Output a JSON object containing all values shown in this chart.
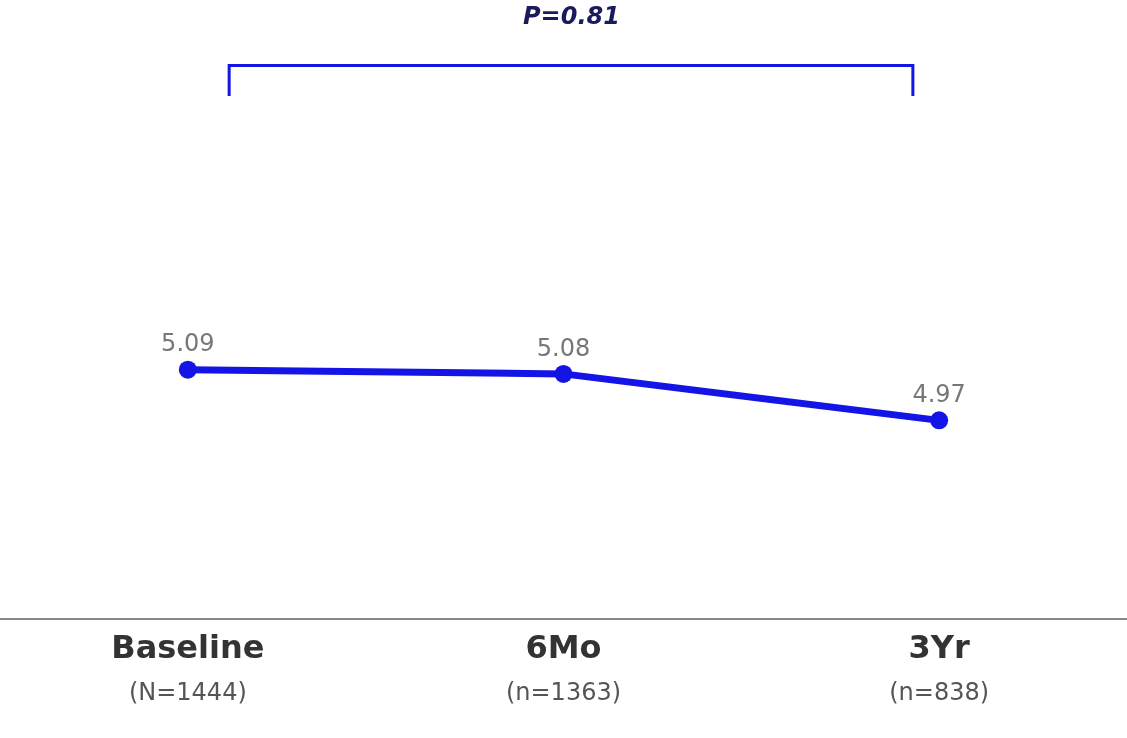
{
  "chart_data": {
    "type": "line",
    "categories": [
      "Baseline\n(N=1444)",
      "6Mo\n(n=1363)",
      "3Yr\n(n=838)"
    ],
    "series": [
      {
        "color": "#1414e6",
        "values": [
          5.09,
          5.08,
          4.97
        ]
      }
    ],
    "data_labels": true,
    "marker": "circle",
    "line_style": "solid",
    "legend": false,
    "tick_labels": "x",
    "annotations": [
      "P=0.81"
    ]
  }
}
